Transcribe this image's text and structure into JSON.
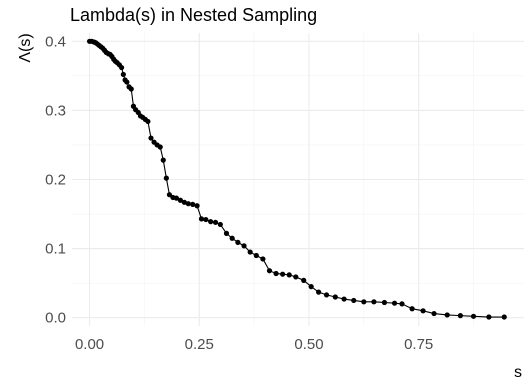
{
  "chart_data": {
    "type": "line",
    "title": "Lambda(s) in Nested Sampling",
    "xlabel": "s",
    "ylabel": "Λ(s)",
    "xlim": [
      -0.04,
      0.99
    ],
    "ylim": [
      -0.012,
      0.412
    ],
    "x_ticks": [
      {
        "value": 0.0,
        "label": "0.00"
      },
      {
        "value": 0.25,
        "label": "0.25"
      },
      {
        "value": 0.5,
        "label": "0.50"
      },
      {
        "value": 0.75,
        "label": "0.75"
      }
    ],
    "y_ticks": [
      {
        "value": 0.0,
        "label": "0.0"
      },
      {
        "value": 0.1,
        "label": "0.1"
      },
      {
        "value": 0.2,
        "label": "0.2"
      },
      {
        "value": 0.3,
        "label": "0.3"
      },
      {
        "value": 0.4,
        "label": "0.4"
      }
    ],
    "grid": true,
    "series": [
      {
        "color": "#000000",
        "points": [
          [
            0.0,
            0.4
          ],
          [
            0.005,
            0.4
          ],
          [
            0.01,
            0.399
          ],
          [
            0.014,
            0.398
          ],
          [
            0.018,
            0.396
          ],
          [
            0.022,
            0.394
          ],
          [
            0.026,
            0.392
          ],
          [
            0.03,
            0.39
          ],
          [
            0.034,
            0.387
          ],
          [
            0.038,
            0.384
          ],
          [
            0.043,
            0.382
          ],
          [
            0.047,
            0.381
          ],
          [
            0.051,
            0.378
          ],
          [
            0.055,
            0.374
          ],
          [
            0.059,
            0.371
          ],
          [
            0.063,
            0.369
          ],
          [
            0.068,
            0.366
          ],
          [
            0.073,
            0.362
          ],
          [
            0.077,
            0.352
          ],
          [
            0.081,
            0.344
          ],
          [
            0.085,
            0.341
          ],
          [
            0.09,
            0.334
          ],
          [
            0.095,
            0.331
          ],
          [
            0.1,
            0.306
          ],
          [
            0.105,
            0.301
          ],
          [
            0.111,
            0.297
          ],
          [
            0.116,
            0.292
          ],
          [
            0.121,
            0.29
          ],
          [
            0.127,
            0.287
          ],
          [
            0.133,
            0.284
          ],
          [
            0.14,
            0.26
          ],
          [
            0.147,
            0.254
          ],
          [
            0.154,
            0.25
          ],
          [
            0.161,
            0.247
          ],
          [
            0.168,
            0.228
          ],
          [
            0.175,
            0.202
          ],
          [
            0.182,
            0.178
          ],
          [
            0.19,
            0.174
          ],
          [
            0.198,
            0.173
          ],
          [
            0.207,
            0.17
          ],
          [
            0.216,
            0.167
          ],
          [
            0.225,
            0.165
          ],
          [
            0.235,
            0.164
          ],
          [
            0.245,
            0.162
          ],
          [
            0.255,
            0.143
          ],
          [
            0.265,
            0.142
          ],
          [
            0.276,
            0.139
          ],
          [
            0.287,
            0.138
          ],
          [
            0.298,
            0.135
          ],
          [
            0.312,
            0.122
          ],
          [
            0.325,
            0.115
          ],
          [
            0.338,
            0.109
          ],
          [
            0.352,
            0.104
          ],
          [
            0.366,
            0.095
          ],
          [
            0.38,
            0.09
          ],
          [
            0.395,
            0.085
          ],
          [
            0.41,
            0.068
          ],
          [
            0.425,
            0.064
          ],
          [
            0.44,
            0.063
          ],
          [
            0.455,
            0.062
          ],
          [
            0.47,
            0.059
          ],
          [
            0.488,
            0.054
          ],
          [
            0.505,
            0.045
          ],
          [
            0.522,
            0.037
          ],
          [
            0.54,
            0.033
          ],
          [
            0.56,
            0.03
          ],
          [
            0.58,
            0.027
          ],
          [
            0.602,
            0.025
          ],
          [
            0.625,
            0.023
          ],
          [
            0.648,
            0.023
          ],
          [
            0.672,
            0.022
          ],
          [
            0.695,
            0.021
          ],
          [
            0.712,
            0.02
          ],
          [
            0.735,
            0.013
          ],
          [
            0.76,
            0.01
          ],
          [
            0.785,
            0.006
          ],
          [
            0.815,
            0.004
          ],
          [
            0.845,
            0.003
          ],
          [
            0.875,
            0.002
          ],
          [
            0.91,
            0.001
          ],
          [
            0.945,
            0.001
          ]
        ]
      }
    ]
  }
}
